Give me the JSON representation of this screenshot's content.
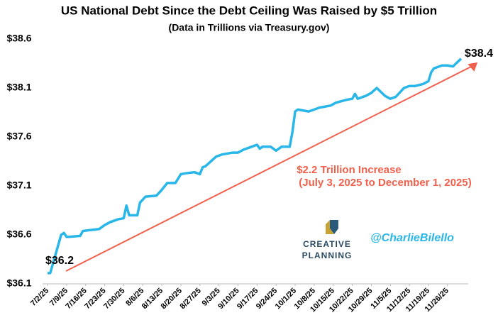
{
  "chart_data": {
    "type": "line",
    "title": "US National Debt Since the Debt Ceiling Was Raised by $5 Trillion",
    "subtitle": "(Data in Trillions via Treasury.gov)",
    "x": [
      "7/2/25",
      "7/3/25",
      "7/7/25",
      "7/8/25",
      "7/9/25",
      "7/10/25",
      "7/14/25",
      "7/15/25",
      "7/18/25",
      "7/21/25",
      "7/23/25",
      "7/25/25",
      "7/28/25",
      "7/30/25",
      "7/31/25",
      "8/1/25",
      "8/4/25",
      "8/5/25",
      "8/7/25",
      "8/11/25",
      "8/13/25",
      "8/15/25",
      "8/18/25",
      "8/20/25",
      "8/22/25",
      "8/25/25",
      "8/27/25",
      "8/28/25",
      "8/29/25",
      "9/2/25",
      "9/4/25",
      "9/8/25",
      "9/10/25",
      "9/12/25",
      "9/15/25",
      "9/17/25",
      "9/18/25",
      "9/19/25",
      "9/22/25",
      "9/24/25",
      "9/26/25",
      "9/29/25",
      "9/30/25",
      "10/1/25",
      "10/2/25",
      "10/6/25",
      "10/8/25",
      "10/10/25",
      "10/14/25",
      "10/16/25",
      "10/20/25",
      "10/22/25",
      "10/23/25",
      "10/24/25",
      "10/27/25",
      "10/29/25",
      "10/31/25",
      "11/3/25",
      "11/5/25",
      "11/7/25",
      "11/10/25",
      "11/12/25",
      "11/14/25",
      "11/17/25",
      "11/19/25",
      "11/20/25",
      "11/21/25",
      "11/24/25",
      "11/26/25",
      "11/28/25",
      "12/1/25"
    ],
    "series": [
      {
        "name": "US National Debt",
        "color": "#29b6e8",
        "values": [
          36.21,
          36.21,
          36.6,
          36.62,
          36.58,
          36.58,
          36.59,
          36.64,
          36.65,
          36.66,
          36.7,
          36.73,
          36.76,
          36.77,
          36.9,
          36.8,
          36.8,
          36.93,
          36.99,
          37.0,
          37.06,
          37.13,
          37.13,
          37.22,
          37.23,
          37.24,
          37.22,
          37.29,
          37.3,
          37.4,
          37.42,
          37.44,
          37.44,
          37.47,
          37.5,
          37.52,
          37.48,
          37.5,
          37.5,
          37.46,
          37.5,
          37.5,
          37.65,
          37.86,
          37.88,
          37.86,
          37.88,
          37.9,
          37.92,
          37.95,
          37.98,
          37.99,
          38.04,
          37.99,
          38.02,
          38.05,
          38.1,
          38.02,
          37.99,
          38.01,
          38.1,
          38.12,
          38.12,
          38.14,
          38.17,
          38.26,
          38.3,
          38.33,
          38.33,
          38.32,
          38.4
        ]
      }
    ],
    "xlim": [
      "7/2/25",
      "12/1/25"
    ],
    "xticks": [
      "7/2/25",
      "7/9/25",
      "7/16/25",
      "7/23/25",
      "7/30/25",
      "8/6/25",
      "8/13/25",
      "8/20/25",
      "8/27/25",
      "9/3/25",
      "9/10/25",
      "9/17/25",
      "9/24/25",
      "10/1/25",
      "10/8/25",
      "10/15/25",
      "10/22/25",
      "10/29/25",
      "11/5/25",
      "11/12/25",
      "11/19/25",
      "11/26/25"
    ],
    "ylim": [
      36.1,
      38.6
    ],
    "yticks": [
      {
        "value": 36.1,
        "label": "$36.1"
      },
      {
        "value": 36.6,
        "label": "$36.6"
      },
      {
        "value": 37.1,
        "label": "$37.1"
      },
      {
        "value": 37.6,
        "label": "$37.6"
      },
      {
        "value": 38.1,
        "label": "$38.1"
      },
      {
        "value": 38.6,
        "label": "$38.6"
      }
    ],
    "start_label": "$36.2",
    "end_label": "$38.4",
    "annotation": "$2.2 Trillion Increase",
    "annotation_range": "(July 3, 2025 to December 1, 2025)",
    "annotation_color": "#f0614d",
    "logo_line1": "CREATIVE",
    "logo_line2": "PLANNING",
    "handle": "@CharlieBilello"
  }
}
